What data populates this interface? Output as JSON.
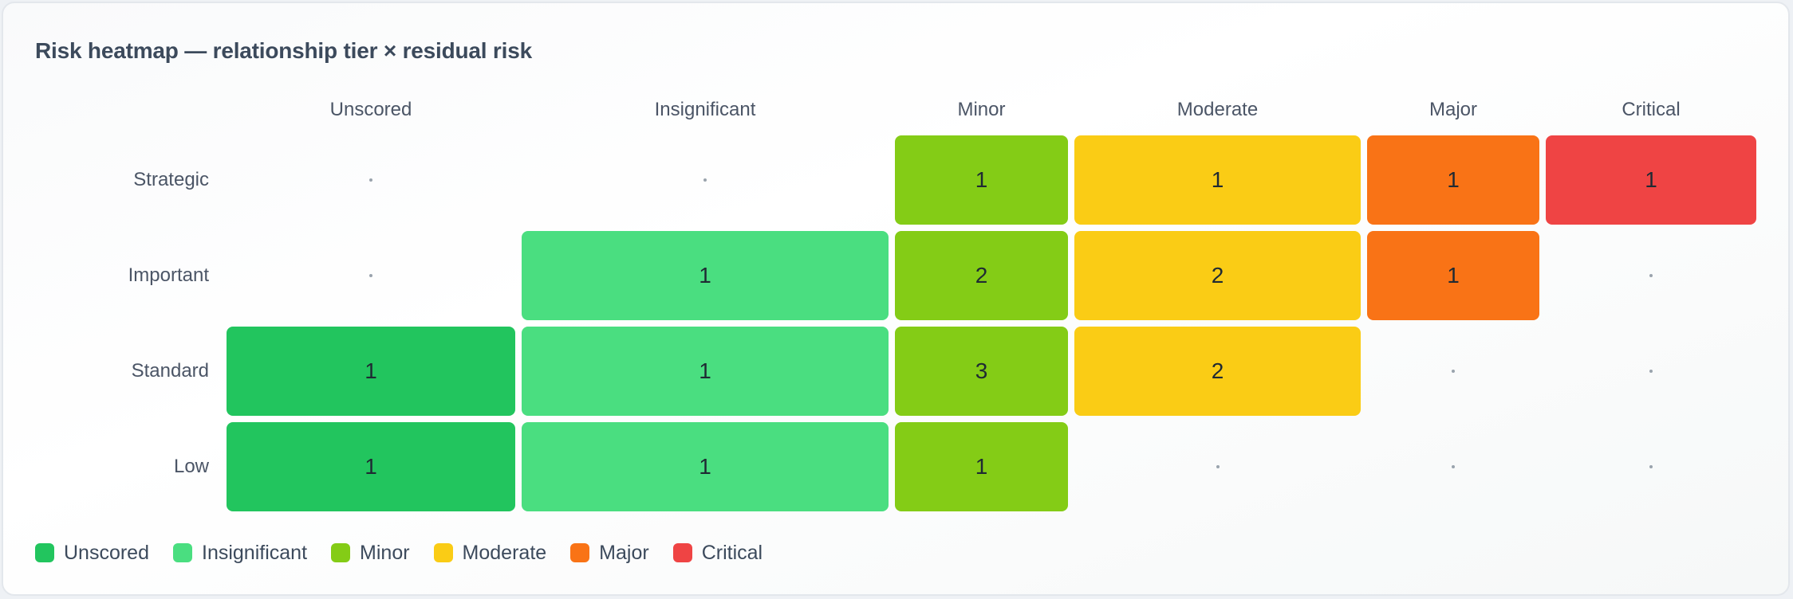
{
  "chart_data": {
    "type": "heatmap",
    "title": "Risk heatmap — relationship tier × residual risk",
    "columns": [
      "Unscored",
      "Insignificant",
      "Minor",
      "Moderate",
      "Major",
      "Critical"
    ],
    "rows": [
      "Strategic",
      "Important",
      "Standard",
      "Low"
    ],
    "values": [
      [
        null,
        null,
        1,
        1,
        1,
        1
      ],
      [
        null,
        1,
        2,
        2,
        1,
        null
      ],
      [
        1,
        1,
        3,
        2,
        null,
        null
      ],
      [
        1,
        1,
        1,
        null,
        null,
        null
      ]
    ],
    "empty_marker": "·",
    "colors": {
      "Unscored": "#22c55e",
      "Insignificant": "#4ade80",
      "Minor": "#84cc16",
      "Moderate": "#facc15",
      "Major": "#f97316",
      "Critical": "#ef4444"
    },
    "legend": [
      "Unscored",
      "Insignificant",
      "Minor",
      "Moderate",
      "Major",
      "Critical"
    ],
    "legend_position": "bottom-left"
  }
}
